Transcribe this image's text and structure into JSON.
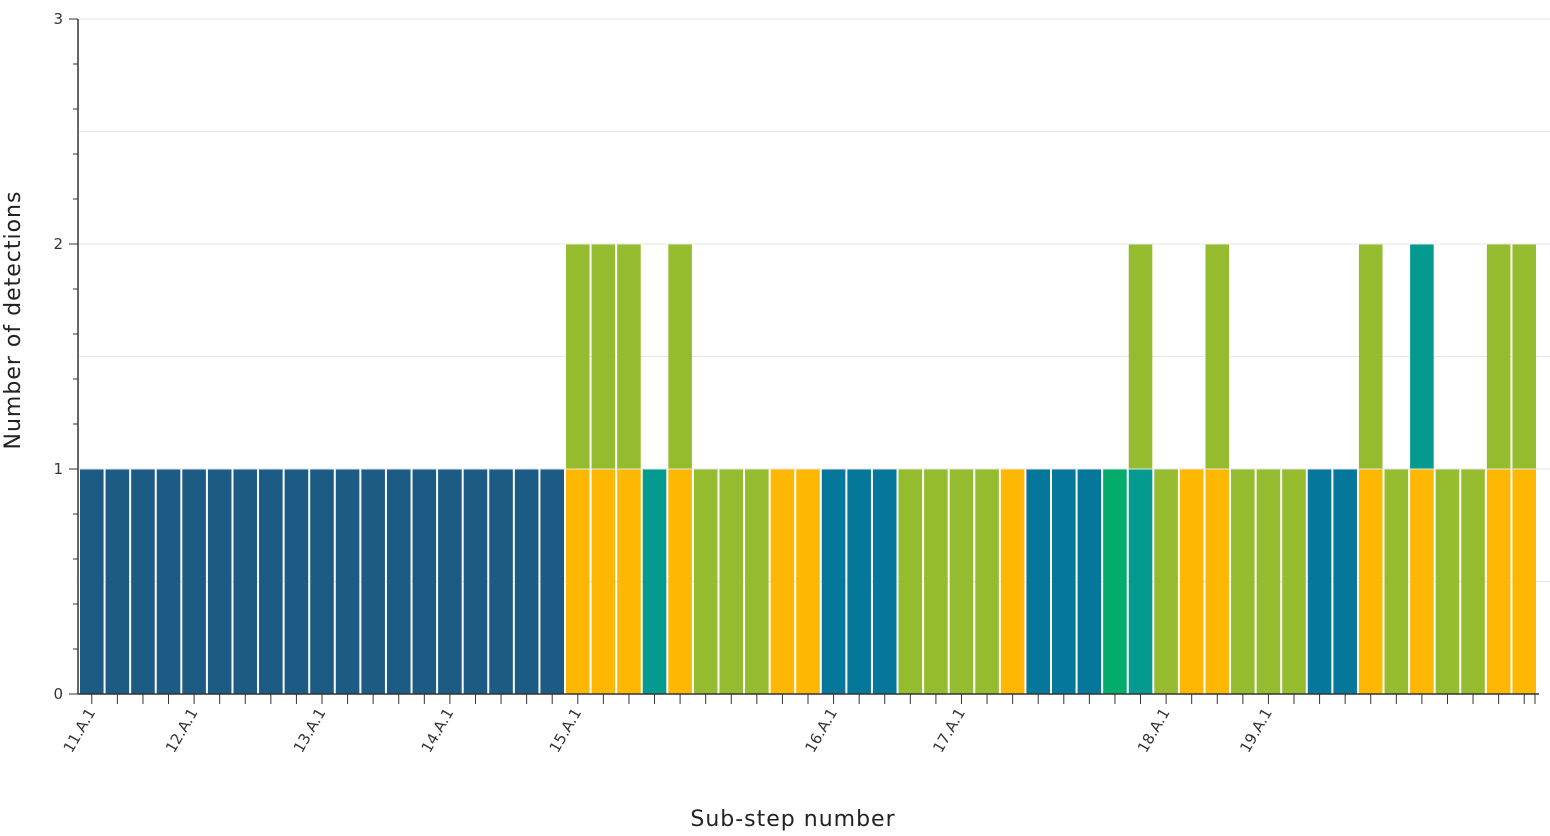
{
  "chart_data": {
    "type": "bar",
    "stacked": true,
    "xlabel": "Sub-step number",
    "ylabel": "Number of detections",
    "ylim": [
      0,
      3
    ],
    "yticks": [
      0,
      1,
      2,
      3
    ],
    "grid": true,
    "x_tick_labels": [
      {
        "index": 0,
        "label": "11.A.1"
      },
      {
        "index": 4,
        "label": "12.A.1"
      },
      {
        "index": 9,
        "label": "13.A.1"
      },
      {
        "index": 14,
        "label": "14.A.1"
      },
      {
        "index": 19,
        "label": "15.A.1"
      },
      {
        "index": 29,
        "label": "16.A.1"
      },
      {
        "index": 34,
        "label": "17.A.1"
      },
      {
        "index": 42,
        "label": "18.A.1"
      },
      {
        "index": 46,
        "label": "19.A.1"
      }
    ],
    "colors": {
      "darkblue": "#1b5b84",
      "blue": "#04779a",
      "teal": "#049a8f",
      "green": "#04ac6c",
      "lime": "#95bc2e",
      "orange": "#feb804"
    },
    "bars": [
      [
        "darkblue"
      ],
      [
        "darkblue"
      ],
      [
        "darkblue"
      ],
      [
        "darkblue"
      ],
      [
        "darkblue"
      ],
      [
        "darkblue"
      ],
      [
        "darkblue"
      ],
      [
        "darkblue"
      ],
      [
        "darkblue"
      ],
      [
        "darkblue"
      ],
      [
        "darkblue"
      ],
      [
        "darkblue"
      ],
      [
        "darkblue"
      ],
      [
        "darkblue"
      ],
      [
        "darkblue"
      ],
      [
        "darkblue"
      ],
      [
        "darkblue"
      ],
      [
        "darkblue"
      ],
      [
        "darkblue"
      ],
      [
        "orange",
        "lime"
      ],
      [
        "orange",
        "lime"
      ],
      [
        "orange",
        "lime"
      ],
      [
        "teal"
      ],
      [
        "orange",
        "lime"
      ],
      [
        "lime"
      ],
      [
        "lime"
      ],
      [
        "lime"
      ],
      [
        "orange"
      ],
      [
        "orange"
      ],
      [
        "blue"
      ],
      [
        "blue"
      ],
      [
        "blue"
      ],
      [
        "lime"
      ],
      [
        "lime"
      ],
      [
        "lime"
      ],
      [
        "lime"
      ],
      [
        "orange"
      ],
      [
        "blue"
      ],
      [
        "blue"
      ],
      [
        "blue"
      ],
      [
        "green"
      ],
      [
        "teal",
        "lime"
      ],
      [
        "lime"
      ],
      [
        "orange"
      ],
      [
        "orange",
        "lime"
      ],
      [
        "lime"
      ],
      [
        "lime"
      ],
      [
        "lime"
      ],
      [
        "blue"
      ],
      [
        "blue"
      ],
      [
        "orange",
        "lime"
      ],
      [
        "lime"
      ],
      [
        "orange",
        "teal"
      ],
      [
        "lime"
      ],
      [
        "lime"
      ],
      [
        "orange",
        "lime"
      ],
      [
        "orange",
        "lime"
      ]
    ]
  }
}
